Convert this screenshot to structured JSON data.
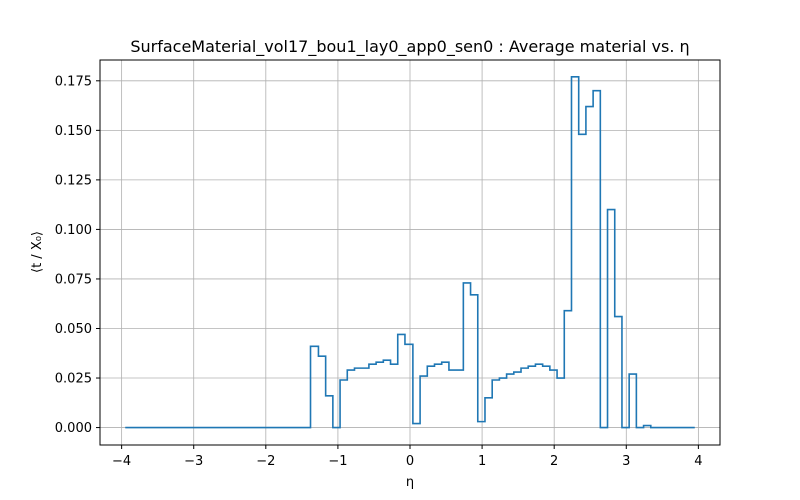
{
  "chart_data": {
    "type": "line",
    "title": "SurfaceMaterial_vol17_bou1_lay0_app0_sen0 : Average material vs. η",
    "xlabel": "η",
    "ylabel": "⟨t / X₀⟩",
    "xlim": [
      -4.3,
      4.3
    ],
    "ylim": [
      -0.0088,
      0.1855
    ],
    "xticks": [
      -4,
      -3,
      -2,
      -1,
      0,
      1,
      2,
      3,
      4
    ],
    "xtick_labels": [
      "−4",
      "−3",
      "−2",
      "−1",
      "0",
      "1",
      "2",
      "3",
      "4"
    ],
    "yticks": [
      0.0,
      0.025,
      0.05,
      0.075,
      0.1,
      0.125,
      0.15,
      0.175
    ],
    "ytick_labels": [
      "0.000",
      "0.025",
      "0.050",
      "0.075",
      "0.100",
      "0.125",
      "0.150",
      "0.175"
    ],
    "grid": true,
    "step": "post",
    "series": [
      {
        "color": "#1f77b4",
        "x": [
          -3.95,
          -1.38,
          -1.27,
          -1.17,
          -1.07,
          -0.97,
          -0.87,
          -0.77,
          -0.57,
          -0.47,
          -0.37,
          -0.27,
          -0.17,
          -0.07,
          0.04,
          0.14,
          0.24,
          0.34,
          0.44,
          0.54,
          0.64,
          0.74,
          0.84,
          0.94,
          1.04,
          1.14,
          1.24,
          1.34,
          1.44,
          1.54,
          1.64,
          1.74,
          1.84,
          1.94,
          2.04,
          2.14,
          2.24,
          2.34,
          2.44,
          2.54,
          2.64,
          2.74,
          2.84,
          2.94,
          3.04,
          3.14,
          3.24,
          3.34,
          3.44,
          3.95
        ],
        "y": [
          0.0,
          0.041,
          0.036,
          0.016,
          0.0,
          0.024,
          0.029,
          0.03,
          0.032,
          0.033,
          0.034,
          0.032,
          0.047,
          0.042,
          0.002,
          0.026,
          0.031,
          0.032,
          0.033,
          0.029,
          0.029,
          0.073,
          0.067,
          0.003,
          0.015,
          0.024,
          0.025,
          0.027,
          0.028,
          0.03,
          0.031,
          0.032,
          0.031,
          0.029,
          0.025,
          0.059,
          0.177,
          0.148,
          0.162,
          0.17,
          0.0,
          0.11,
          0.056,
          0.0,
          0.027,
          0.0,
          0.001,
          0.0,
          0.0,
          0.0
        ]
      }
    ]
  }
}
